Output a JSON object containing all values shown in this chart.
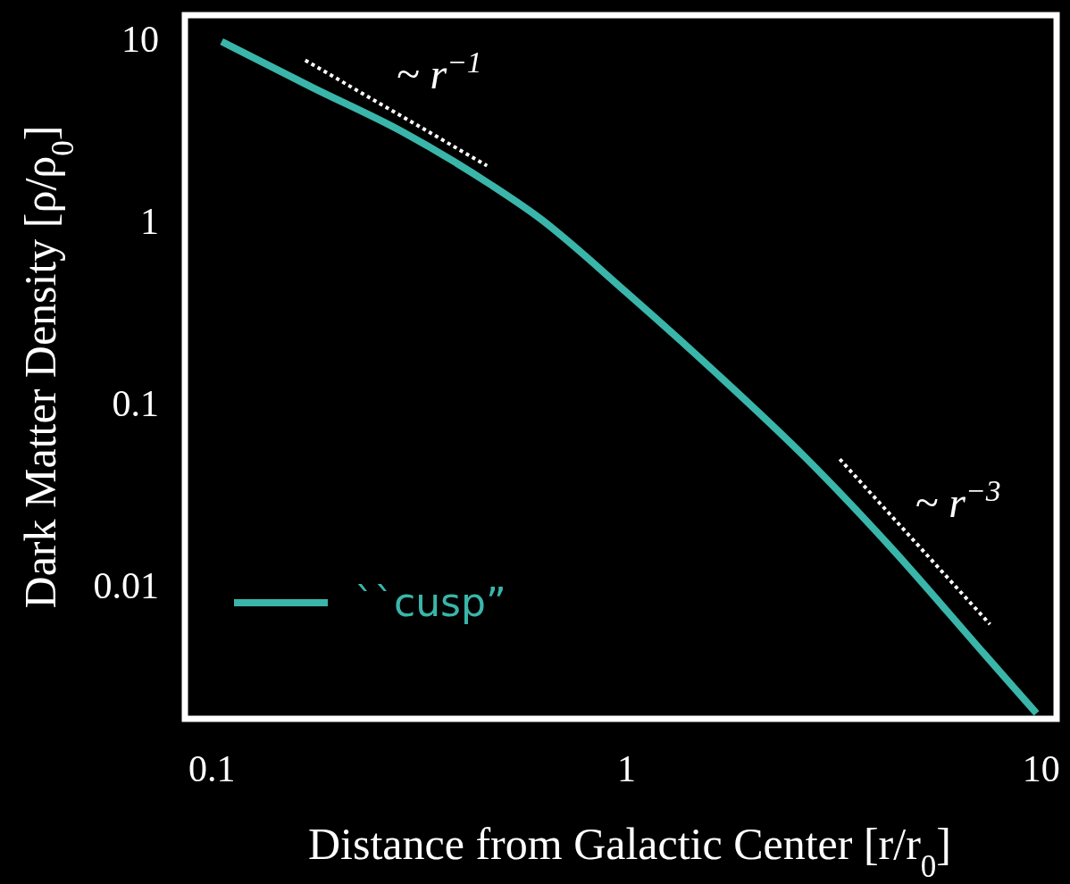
{
  "chart_data": {
    "type": "line",
    "xlabel": "Distance from Galactic Center [r/r$_{0}$]",
    "ylabel": "Dark Matter Density [ρ/ρ$_{0}$]",
    "log": "xy",
    "xlim": [
      0.0861,
      10.9
    ],
    "ylim": [
      0.00184,
      13.5
    ],
    "xticks": [
      0.1,
      1,
      10
    ],
    "yticks": [
      0.01,
      0.1,
      1,
      10
    ],
    "grid": false,
    "legend": "bottom left",
    "series": [
      {
        "name": "``cusp”",
        "color": "#3ab5aa",
        "line_style": "solid",
        "x": [
          0.1056,
          0.175,
          0.288,
          0.473,
          0.609,
          1,
          1.64,
          2.7,
          4.43,
          7.28,
          9.75
        ],
        "values": [
          9.67,
          5.4,
          3.09,
          1.57,
          1.06,
          0.405,
          0.147,
          0.0502,
          0.0153,
          0.0042,
          0.00197
        ]
      },
      {
        "color": "#ffffff",
        "line_style": "dotted",
        "x": [
          0.168,
          0.461
        ],
        "values": [
          7.63,
          2.01
        ]
      },
      {
        "color": "#ffffff",
        "line_style": "dotted",
        "x": [
          3.27,
          7.53
        ],
        "values": [
          0.0491,
          0.00608
        ]
      }
    ],
    "annotations": [
      "~ r$^{−1}$",
      "~ r$^{−3}$"
    ]
  }
}
